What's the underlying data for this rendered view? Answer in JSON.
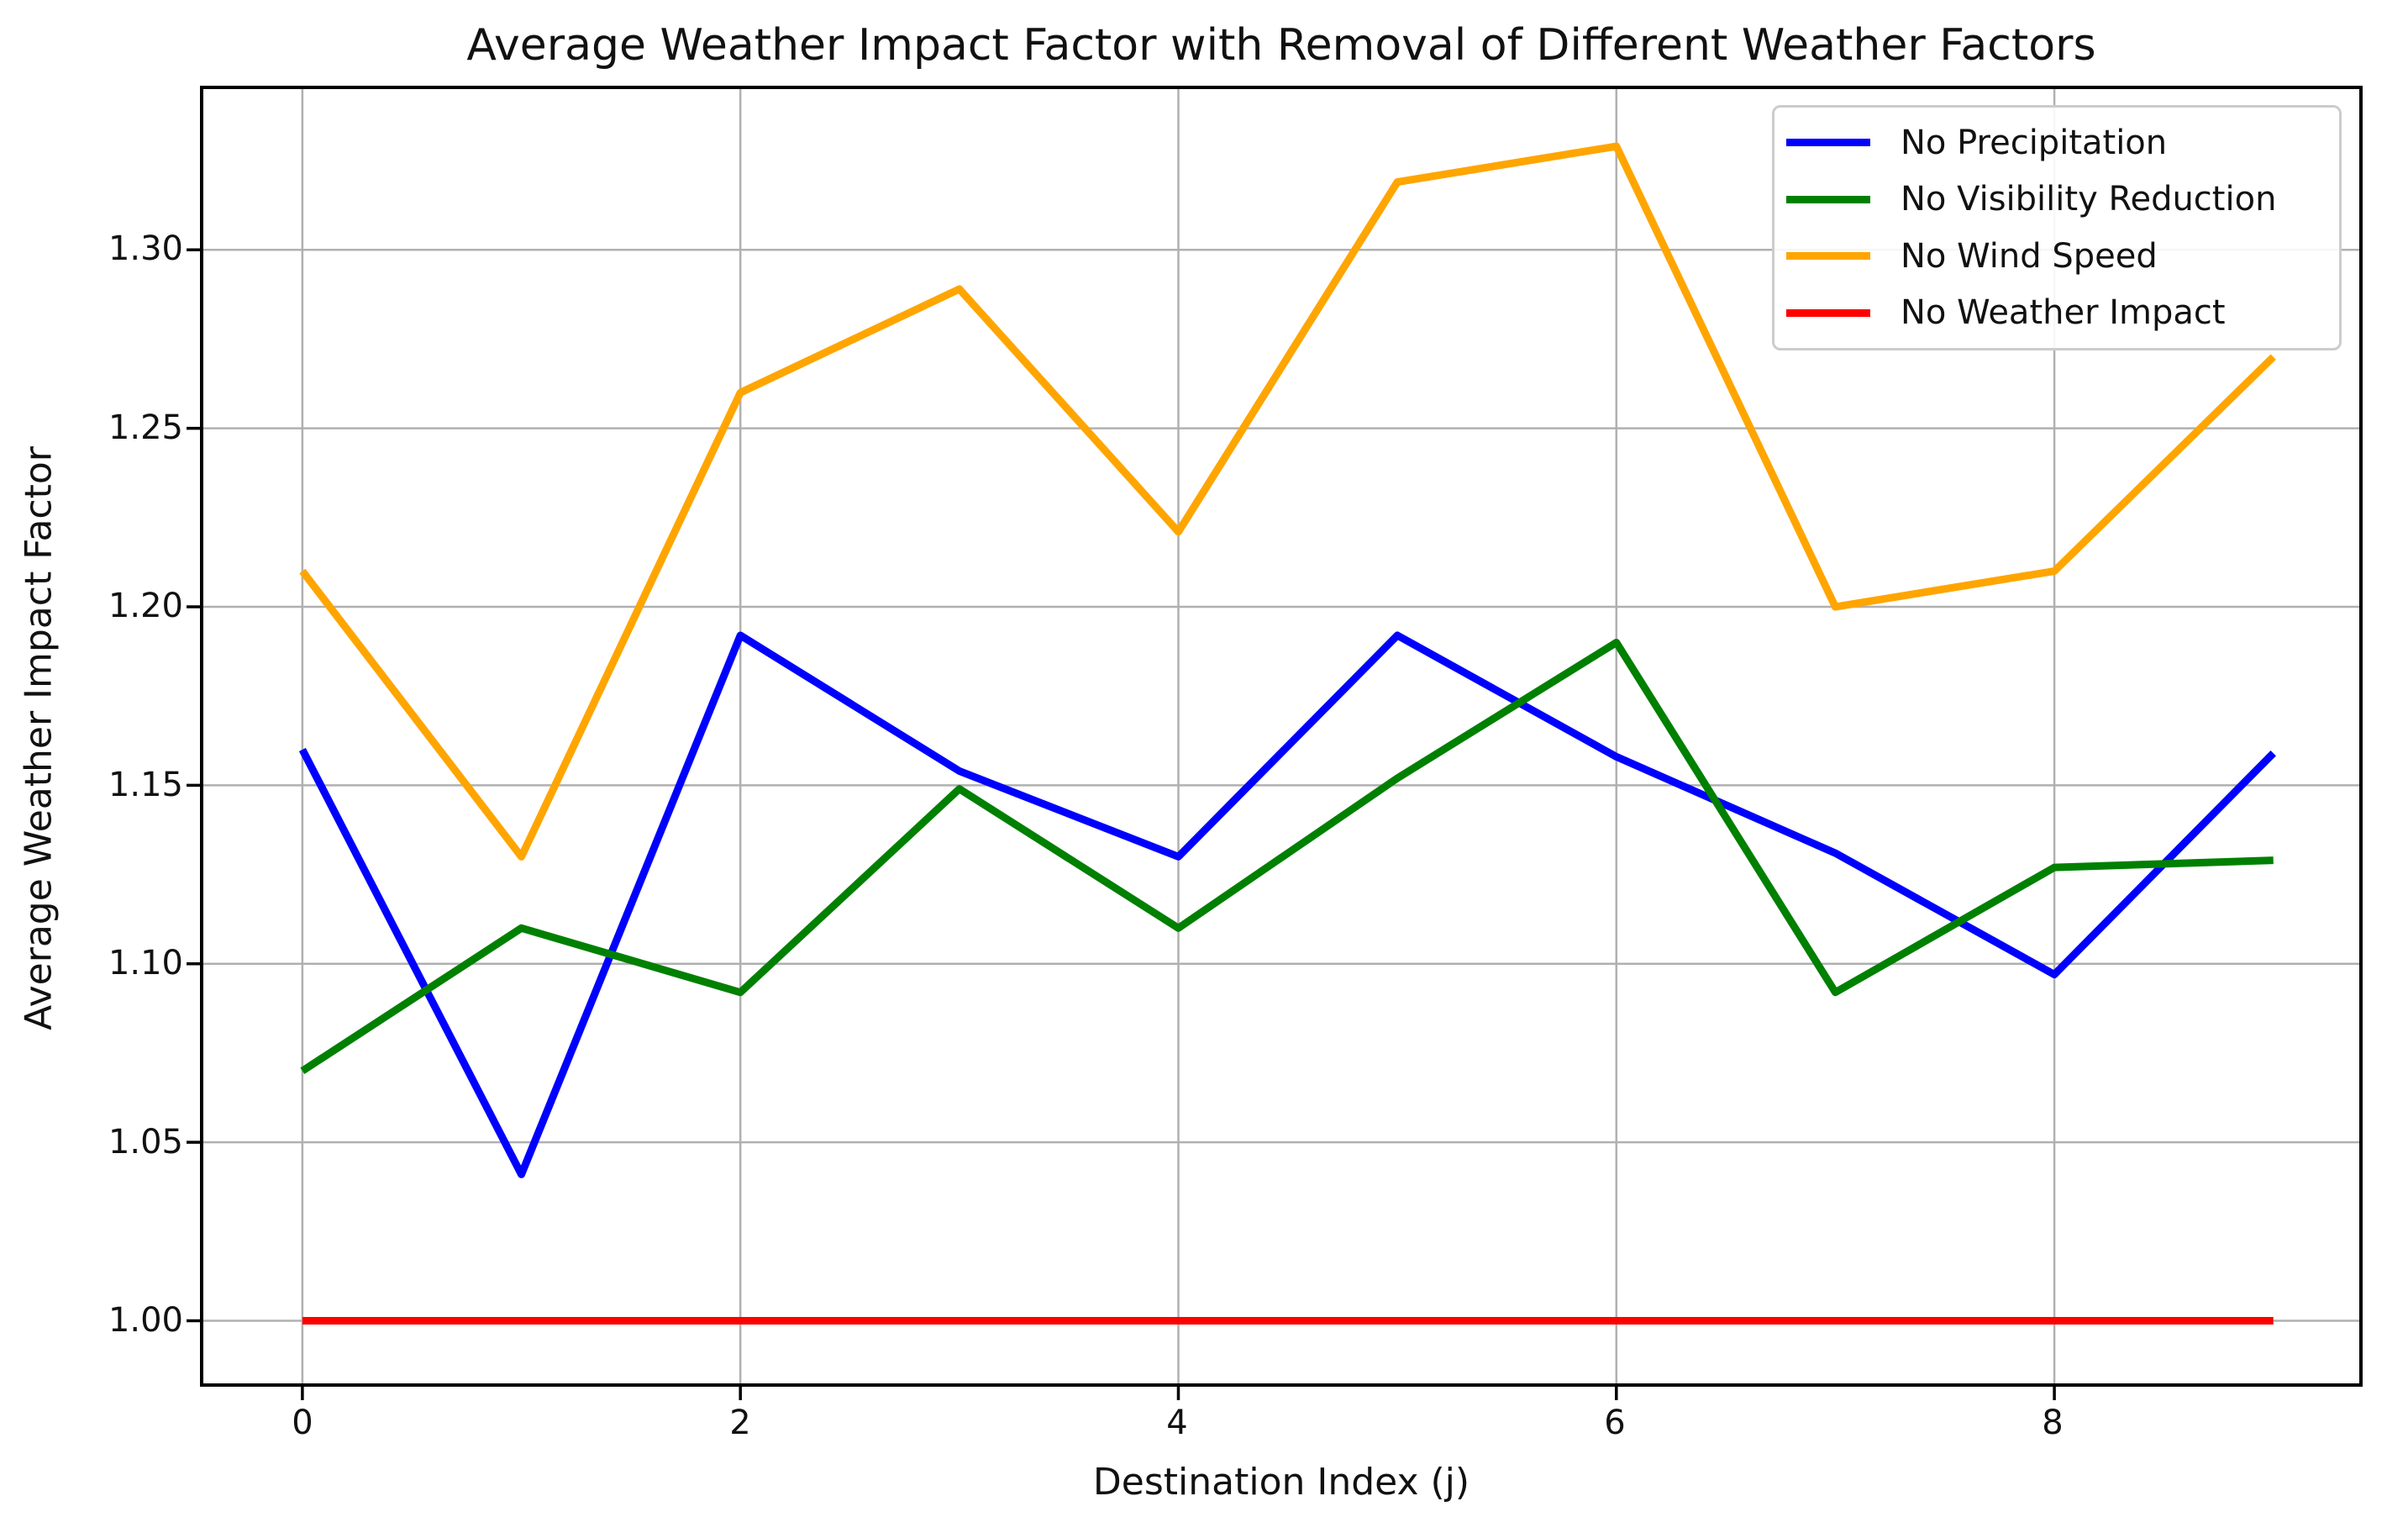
{
  "chart_data": {
    "type": "line",
    "title": "Average Weather Impact Factor with Removal of Different Weather Factors",
    "xlabel": "Destination Index (j)",
    "ylabel": "Average Weather Impact Factor",
    "x": [
      0,
      1,
      2,
      3,
      4,
      5,
      6,
      7,
      8,
      9
    ],
    "series": [
      {
        "name": "No Precipitation",
        "color": "#0000ff",
        "values": [
          1.16,
          1.041,
          1.192,
          1.154,
          1.13,
          1.192,
          1.158,
          1.131,
          1.097,
          1.159
        ]
      },
      {
        "name": "No Visibility Reduction",
        "color": "#008000",
        "values": [
          1.07,
          1.11,
          1.092,
          1.149,
          1.11,
          1.152,
          1.19,
          1.092,
          1.127,
          1.129
        ]
      },
      {
        "name": "No Wind Speed",
        "color": "#ffa500",
        "values": [
          1.21,
          1.13,
          1.26,
          1.289,
          1.221,
          1.319,
          1.329,
          1.2,
          1.21,
          1.27
        ]
      },
      {
        "name": "No Weather Impact",
        "color": "#ff0000",
        "values": [
          1.0,
          1.0,
          1.0,
          1.0,
          1.0,
          1.0,
          1.0,
          1.0,
          1.0,
          1.0
        ]
      }
    ],
    "x_ticks": [
      "0",
      "2",
      "4",
      "6",
      "8"
    ],
    "x_tick_values": [
      0,
      2,
      4,
      6,
      8
    ],
    "y_ticks": [
      "1.00",
      "1.05",
      "1.10",
      "1.15",
      "1.20",
      "1.25",
      "1.30"
    ],
    "y_tick_values": [
      1.0,
      1.05,
      1.1,
      1.15,
      1.2,
      1.25,
      1.3
    ],
    "xlim": [
      -0.46,
      9.4
    ],
    "ylim": [
      0.982,
      1.3455
    ],
    "grid": true,
    "legend_position": "upper right",
    "colors": {
      "grid": "#b0b0b0",
      "spine": "#000000",
      "background": "#ffffff"
    }
  }
}
